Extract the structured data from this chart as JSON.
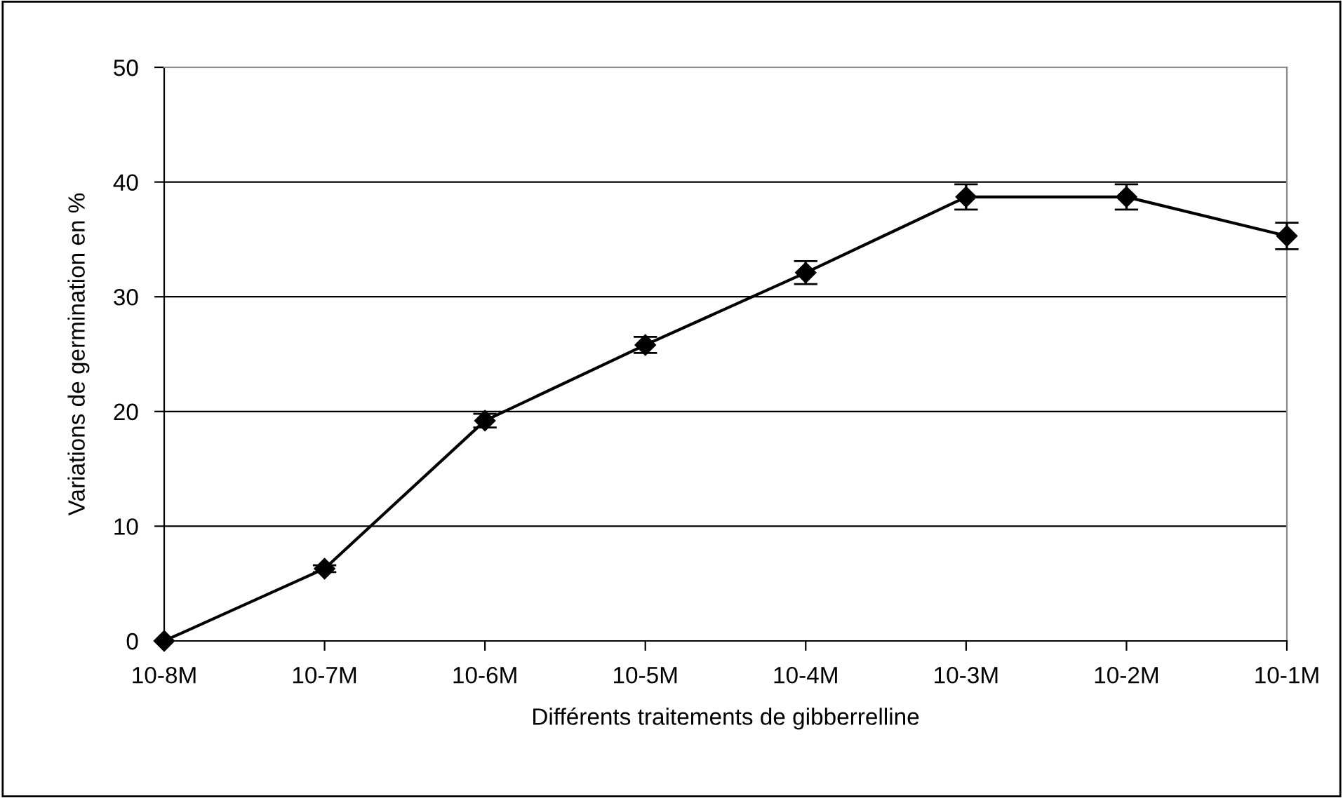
{
  "chart_data": {
    "type": "line",
    "xlabel": "Différents traitements de gibberrelline",
    "ylabel": "Variations de germination en %",
    "categories": [
      "10-8M",
      "10-7M",
      "10-6M",
      "10-5M",
      "10-4M",
      "10-3M",
      "10-2M",
      "10-1M"
    ],
    "series": [
      {
        "color": "#000000",
        "values": [
          0,
          6.3,
          19.2,
          25.8,
          32.1,
          38.7,
          38.7,
          35.3
        ],
        "errors": [
          null,
          0.3,
          0.6,
          0.7,
          1.0,
          1.1,
          1.1,
          1.15
        ]
      }
    ],
    "ylim": [
      0,
      50
    ],
    "yticks": [
      0,
      10,
      20,
      30,
      40,
      50
    ],
    "grid": "y",
    "marker": "diamond",
    "line_style": "solid"
  }
}
